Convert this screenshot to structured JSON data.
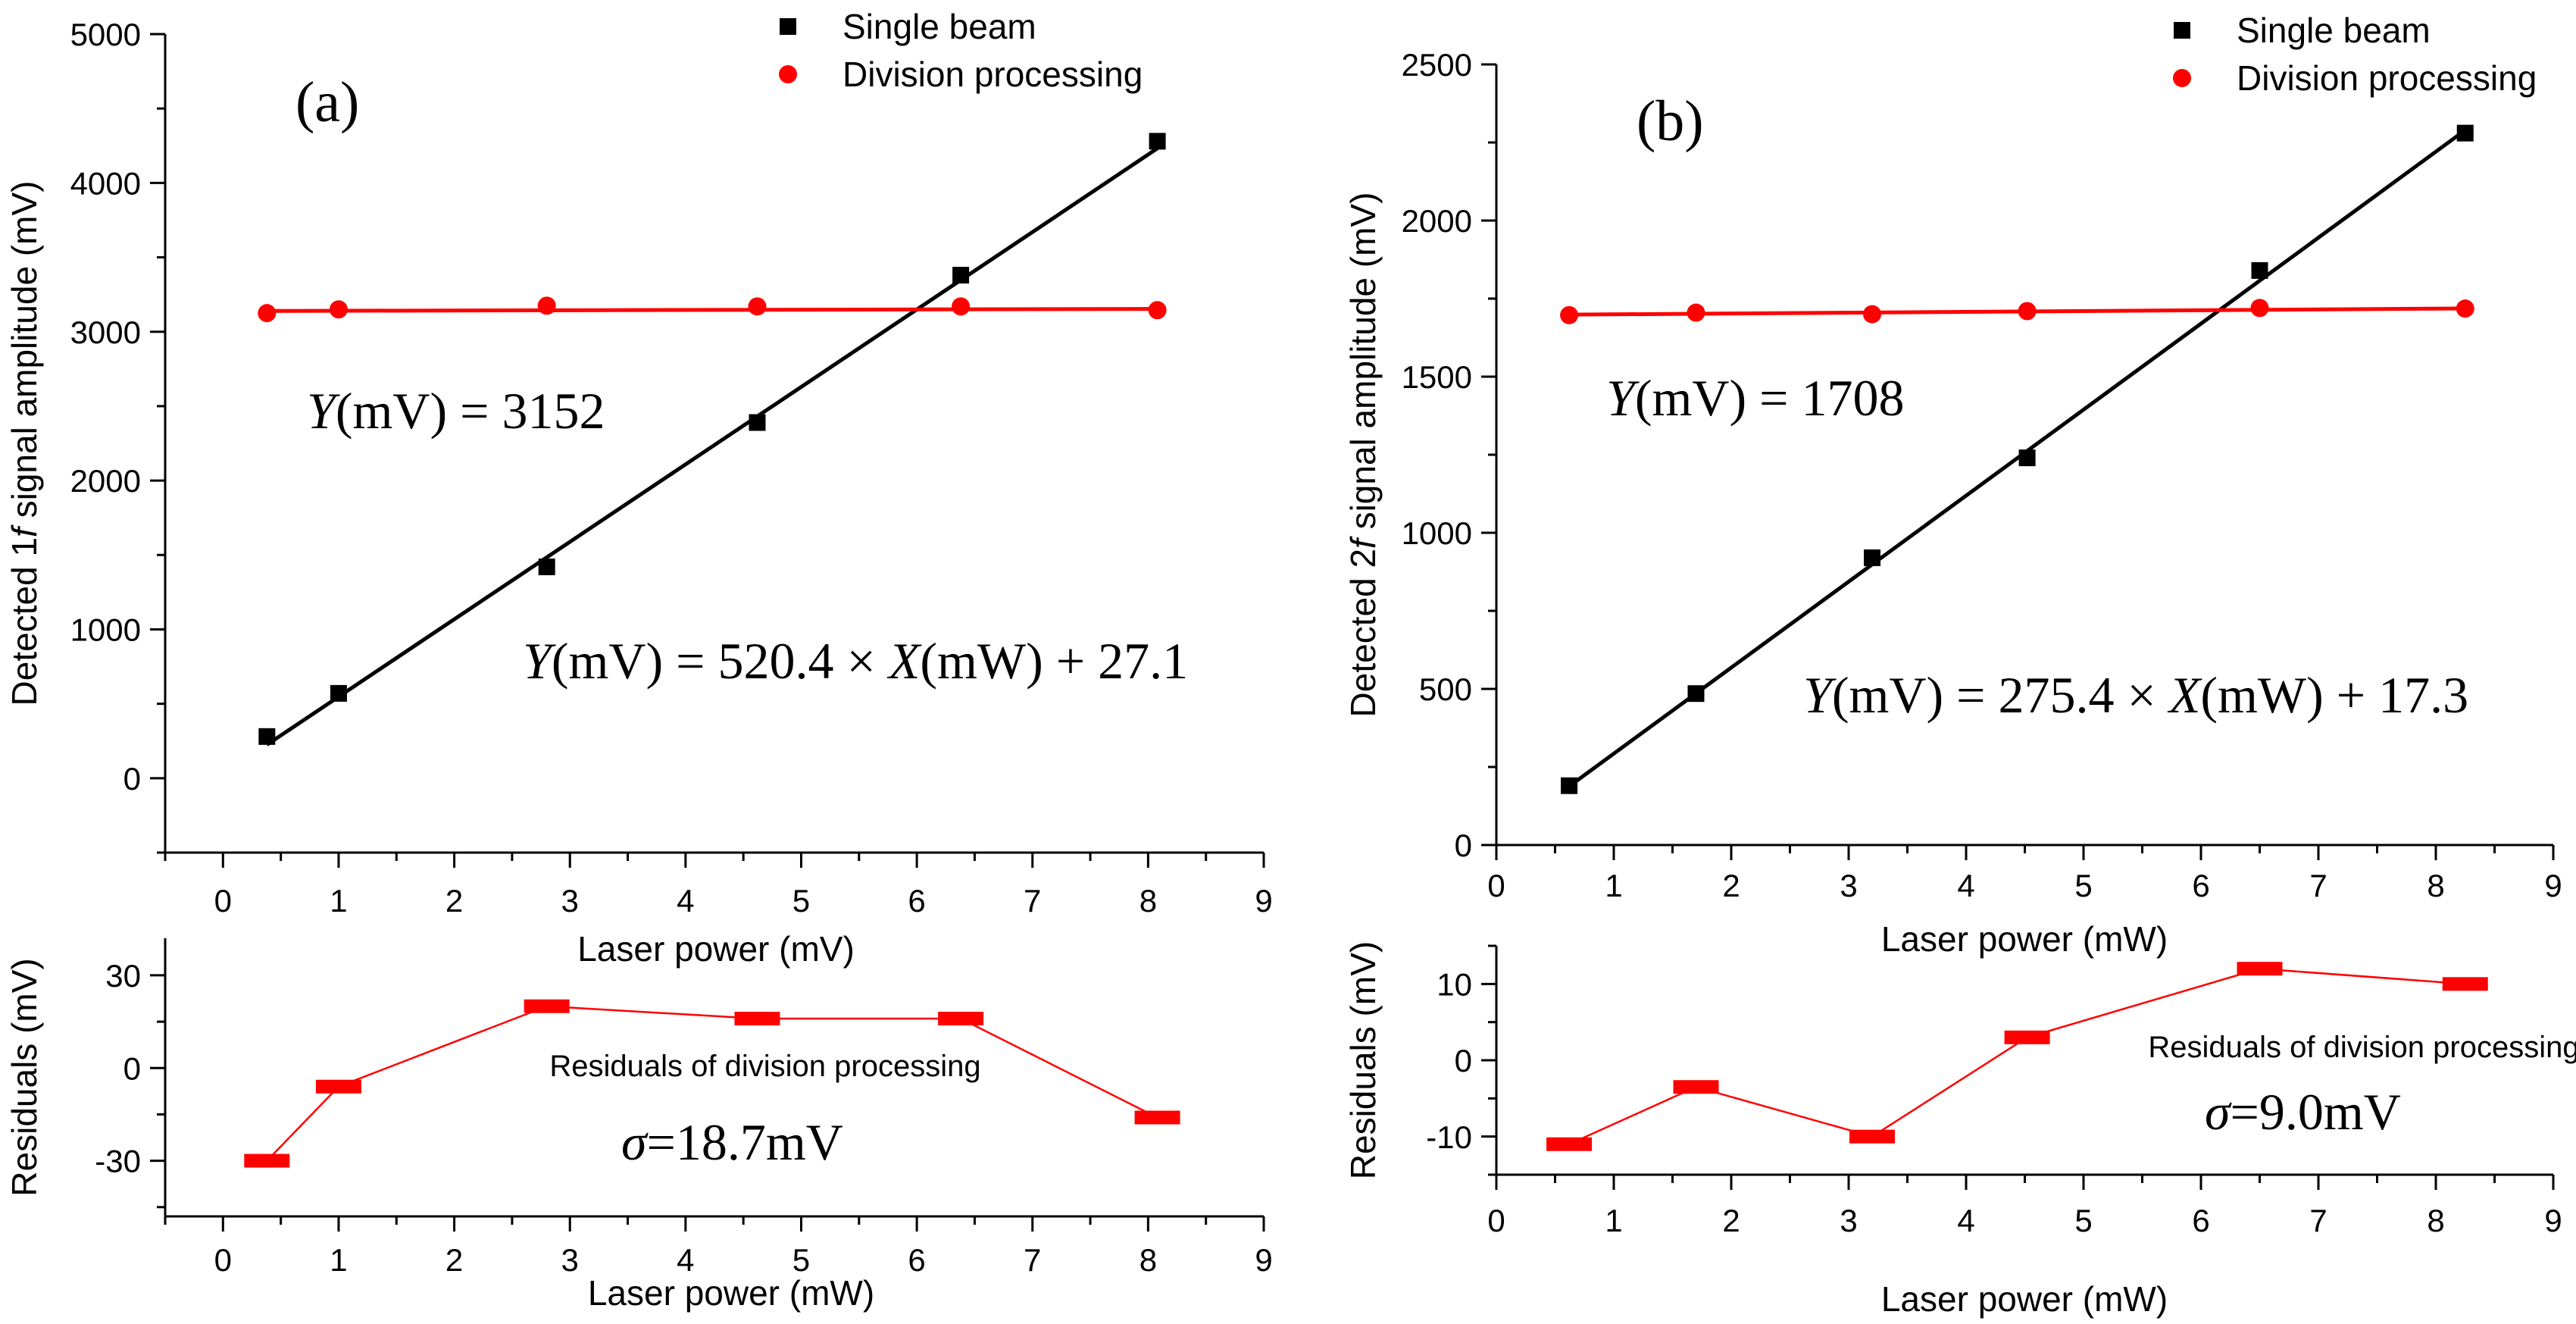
{
  "chart_data": [
    {
      "id": "a",
      "type": "scatter",
      "panel_label": "(a)",
      "ylabel_prefix": "Detected 1",
      "ylabel_f": "f",
      "ylabel_suffix": " signal amplitude (mV)",
      "xlabel": "Laser power (mV)",
      "xlim": [
        -0.5,
        9
      ],
      "ylim": [
        -500,
        5000
      ],
      "xticks": [
        0,
        1,
        2,
        3,
        4,
        5,
        6,
        7,
        8,
        9
      ],
      "yticks": [
        0,
        1000,
        2000,
        3000,
        4000,
        5000
      ],
      "legend": {
        "position": "top-right"
      },
      "series": [
        {
          "name": "Single beam",
          "marker": "square",
          "color": "#000000",
          "x": [
            0.38,
            1.0,
            2.8,
            4.62,
            6.38,
            8.08
          ],
          "y": [
            280,
            570,
            1420,
            2390,
            3380,
            4280
          ],
          "fit": {
            "x1": 0.38,
            "x2": 8.08,
            "slope": 520.4,
            "intercept": 27.1
          },
          "equation": {
            "prefix": "Y",
            "unit1": "(mV) = 520.4 × ",
            "x": "X",
            "unit2": "(mW) + 27.1"
          }
        },
        {
          "name": "Division processing",
          "marker": "circle",
          "color": "#ff0000",
          "x": [
            0.38,
            1.0,
            2.8,
            4.62,
            6.38,
            8.08
          ],
          "y": [
            3125,
            3150,
            3175,
            3170,
            3170,
            3145
          ],
          "fit": {
            "x1": 0.38,
            "x2": 8.08,
            "slope": 1.8,
            "intercept": 3139
          },
          "equation": {
            "prefix": "Y",
            "unit1": "(mV) = 3152",
            "x": "",
            "unit2": ""
          }
        }
      ],
      "residuals": {
        "ylabel": "Residuals (mV)",
        "xlabel": "Laser power (mW)",
        "xlim": [
          -0.5,
          9
        ],
        "ylim": [
          -48,
          42
        ],
        "xticks": [
          0,
          1,
          2,
          3,
          4,
          5,
          6,
          7,
          8,
          9
        ],
        "yticks": [
          -30,
          0,
          30
        ],
        "title": "Residuals of division processing",
        "sigma_symbol": "σ",
        "sigma_value": "=18.7mV",
        "color": "#ff0000",
        "x": [
          0.38,
          1.0,
          2.8,
          4.62,
          6.38,
          8.08
        ],
        "y": [
          -30,
          -6,
          20,
          16,
          16,
          -16
        ]
      }
    },
    {
      "id": "b",
      "type": "scatter",
      "panel_label": "(b)",
      "ylabel_prefix": "Detected 2",
      "ylabel_f": "f",
      "ylabel_suffix": " signal amplitude (mV)",
      "xlabel": "Laser power (mW)",
      "xlim": [
        0,
        9
      ],
      "ylim": [
        0,
        2500
      ],
      "xticks": [
        0,
        1,
        2,
        3,
        4,
        5,
        6,
        7,
        8,
        9
      ],
      "yticks": [
        0,
        500,
        1000,
        1500,
        2000,
        2500
      ],
      "legend": {
        "position": "top-right"
      },
      "series": [
        {
          "name": "Single beam",
          "marker": "square",
          "color": "#000000",
          "x": [
            0.62,
            1.7,
            3.2,
            4.52,
            6.5,
            8.25
          ],
          "y": [
            190,
            485,
            920,
            1240,
            1840,
            2280
          ],
          "fit": {
            "x1": 0.62,
            "x2": 8.25,
            "slope": 275.4,
            "intercept": 17.3
          },
          "equation": {
            "prefix": "Y",
            "unit1": "(mV) = 275.4 × ",
            "x": "X",
            "unit2": "(mW) + 17.3"
          }
        },
        {
          "name": "Division processing",
          "marker": "circle",
          "color": "#ff0000",
          "x": [
            0.62,
            1.7,
            3.2,
            4.52,
            6.5,
            8.25
          ],
          "y": [
            1697,
            1705,
            1700,
            1710,
            1720,
            1718
          ],
          "fit": {
            "x1": 0.62,
            "x2": 8.25,
            "slope": 2.6,
            "intercept": 1697
          },
          "equation": {
            "prefix": "Y",
            "unit1": "(mV) = 1708",
            "x": "",
            "unit2": ""
          }
        }
      ],
      "residuals": {
        "ylabel": "Residuals (mV)",
        "xlabel": "Laser power (mW)",
        "xlim": [
          0,
          9
        ],
        "ylim": [
          -15,
          15
        ],
        "xticks": [
          0,
          1,
          2,
          3,
          4,
          5,
          6,
          7,
          8,
          9
        ],
        "yticks": [
          -10,
          0,
          10
        ],
        "title": "Residuals of division processing",
        "sigma_symbol": "σ",
        "sigma_value": "=9.0mV",
        "color": "#ff0000",
        "x": [
          0.62,
          1.7,
          3.2,
          4.52,
          6.5,
          8.25
        ],
        "y": [
          -11,
          -3.5,
          -10,
          3,
          12,
          10
        ]
      }
    }
  ]
}
